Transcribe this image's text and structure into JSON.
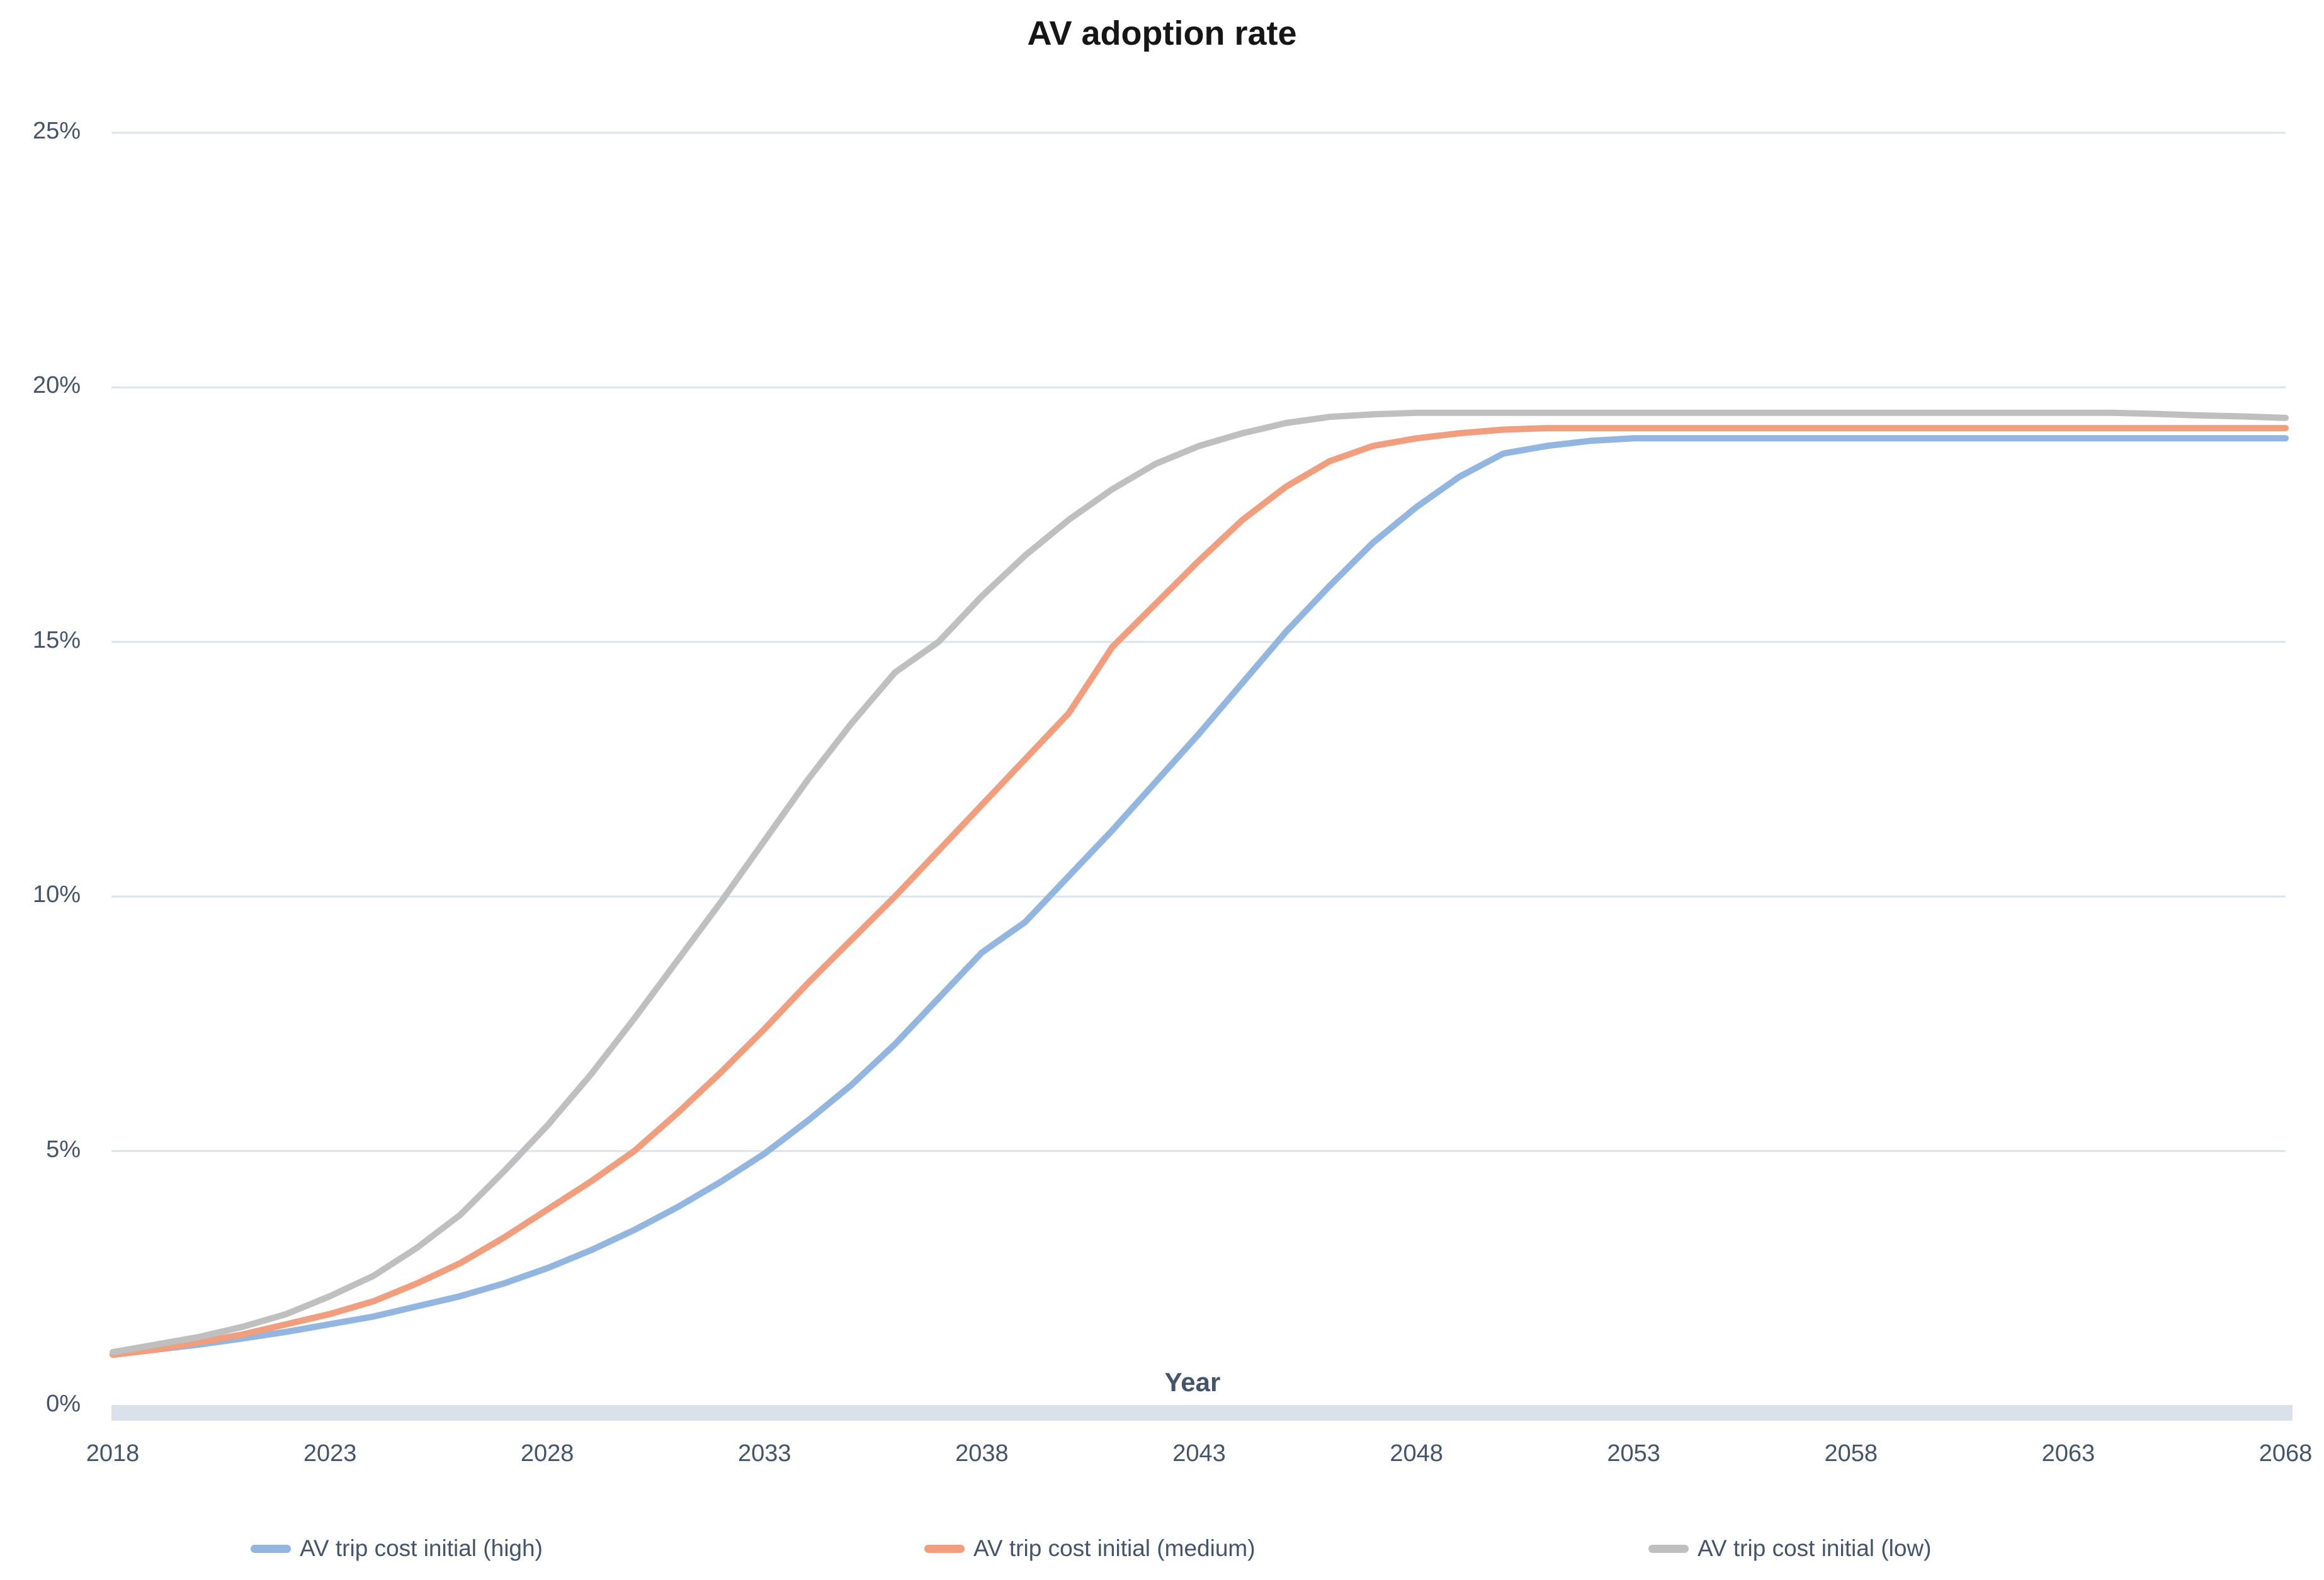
{
  "chart_data": {
    "type": "line",
    "title": "AV adoption rate",
    "xlabel": "Year",
    "ylabel": "",
    "xlim": [
      2018,
      2068
    ],
    "ylim": [
      0,
      25
    ],
    "grid": "horizontal",
    "legend_position": "bottom",
    "colors": {
      "grid_line": "#DCE3ED",
      "axis_band": "#DAE1EB",
      "tick_text": "#44546A",
      "title_text": "#161616"
    },
    "y_ticks": [
      {
        "label": "0%",
        "value": 0
      },
      {
        "label": "5%",
        "value": 5
      },
      {
        "label": "10%",
        "value": 10
      },
      {
        "label": "15%",
        "value": 15
      },
      {
        "label": "20%",
        "value": 20
      },
      {
        "label": "25%",
        "value": 25
      }
    ],
    "x_ticks": [
      {
        "label": "2018",
        "value": 2018
      },
      {
        "label": "2023",
        "value": 2023
      },
      {
        "label": "2028",
        "value": 2028
      },
      {
        "label": "2033",
        "value": 2033
      },
      {
        "label": "2038",
        "value": 2038
      },
      {
        "label": "2043",
        "value": 2043
      },
      {
        "label": "2048",
        "value": 2048
      },
      {
        "label": "2053",
        "value": 2053
      },
      {
        "label": "2058",
        "value": 2058
      },
      {
        "label": "2063",
        "value": 2063
      },
      {
        "label": "2068",
        "value": 2068
      }
    ],
    "years": [
      2018,
      2019,
      2020,
      2021,
      2022,
      2023,
      2024,
      2025,
      2026,
      2027,
      2028,
      2029,
      2030,
      2031,
      2032,
      2033,
      2034,
      2035,
      2036,
      2037,
      2038,
      2039,
      2040,
      2041,
      2042,
      2043,
      2044,
      2045,
      2046,
      2047,
      2048,
      2049,
      2050,
      2051,
      2052,
      2053,
      2054,
      2055,
      2056,
      2057,
      2058,
      2059,
      2060,
      2061,
      2062,
      2063,
      2064,
      2065,
      2066,
      2067,
      2068
    ],
    "series": [
      {
        "name": "AV trip cost initial (high)",
        "color": "#92B6E0",
        "values": [
          1.0,
          1.1,
          1.2,
          1.32,
          1.45,
          1.6,
          1.75,
          1.95,
          2.15,
          2.4,
          2.7,
          3.05,
          3.45,
          3.9,
          4.4,
          4.95,
          5.6,
          6.3,
          7.1,
          8.0,
          8.9,
          9.5,
          10.4,
          11.3,
          12.25,
          13.2,
          14.2,
          15.2,
          16.1,
          16.95,
          17.65,
          18.25,
          18.7,
          18.85,
          18.95,
          19.0,
          19.0,
          19.0,
          19.0,
          19.0,
          19.0,
          19.0,
          19.0,
          19.0,
          19.0,
          19.0,
          19.0,
          19.0,
          19.0,
          19.0,
          19.0
        ]
      },
      {
        "name": "AV trip cost initial (medium)",
        "color": "#F09E7E",
        "values": [
          1.0,
          1.1,
          1.25,
          1.4,
          1.6,
          1.8,
          2.05,
          2.4,
          2.8,
          3.3,
          3.85,
          4.4,
          5.0,
          5.75,
          6.55,
          7.4,
          8.3,
          9.15,
          10.0,
          10.9,
          11.8,
          12.7,
          13.6,
          14.9,
          15.75,
          16.6,
          17.4,
          18.05,
          18.55,
          18.85,
          19.0,
          19.1,
          19.17,
          19.2,
          19.2,
          19.2,
          19.2,
          19.2,
          19.2,
          19.2,
          19.2,
          19.2,
          19.2,
          19.2,
          19.2,
          19.2,
          19.2,
          19.2,
          19.2,
          19.2,
          19.2
        ]
      },
      {
        "name": "AV trip cost initial (low)",
        "color": "#BFBFBF",
        "values": [
          1.05,
          1.2,
          1.35,
          1.55,
          1.8,
          2.15,
          2.55,
          3.1,
          3.75,
          4.6,
          5.5,
          6.5,
          7.6,
          8.75,
          9.9,
          11.1,
          12.3,
          13.4,
          14.4,
          15.0,
          15.9,
          16.7,
          17.4,
          18.0,
          18.5,
          18.85,
          19.1,
          19.3,
          19.42,
          19.47,
          19.5,
          19.5,
          19.5,
          19.5,
          19.5,
          19.5,
          19.5,
          19.5,
          19.5,
          19.5,
          19.5,
          19.5,
          19.5,
          19.5,
          19.5,
          19.5,
          19.5,
          19.48,
          19.45,
          19.43,
          19.4
        ]
      }
    ]
  }
}
